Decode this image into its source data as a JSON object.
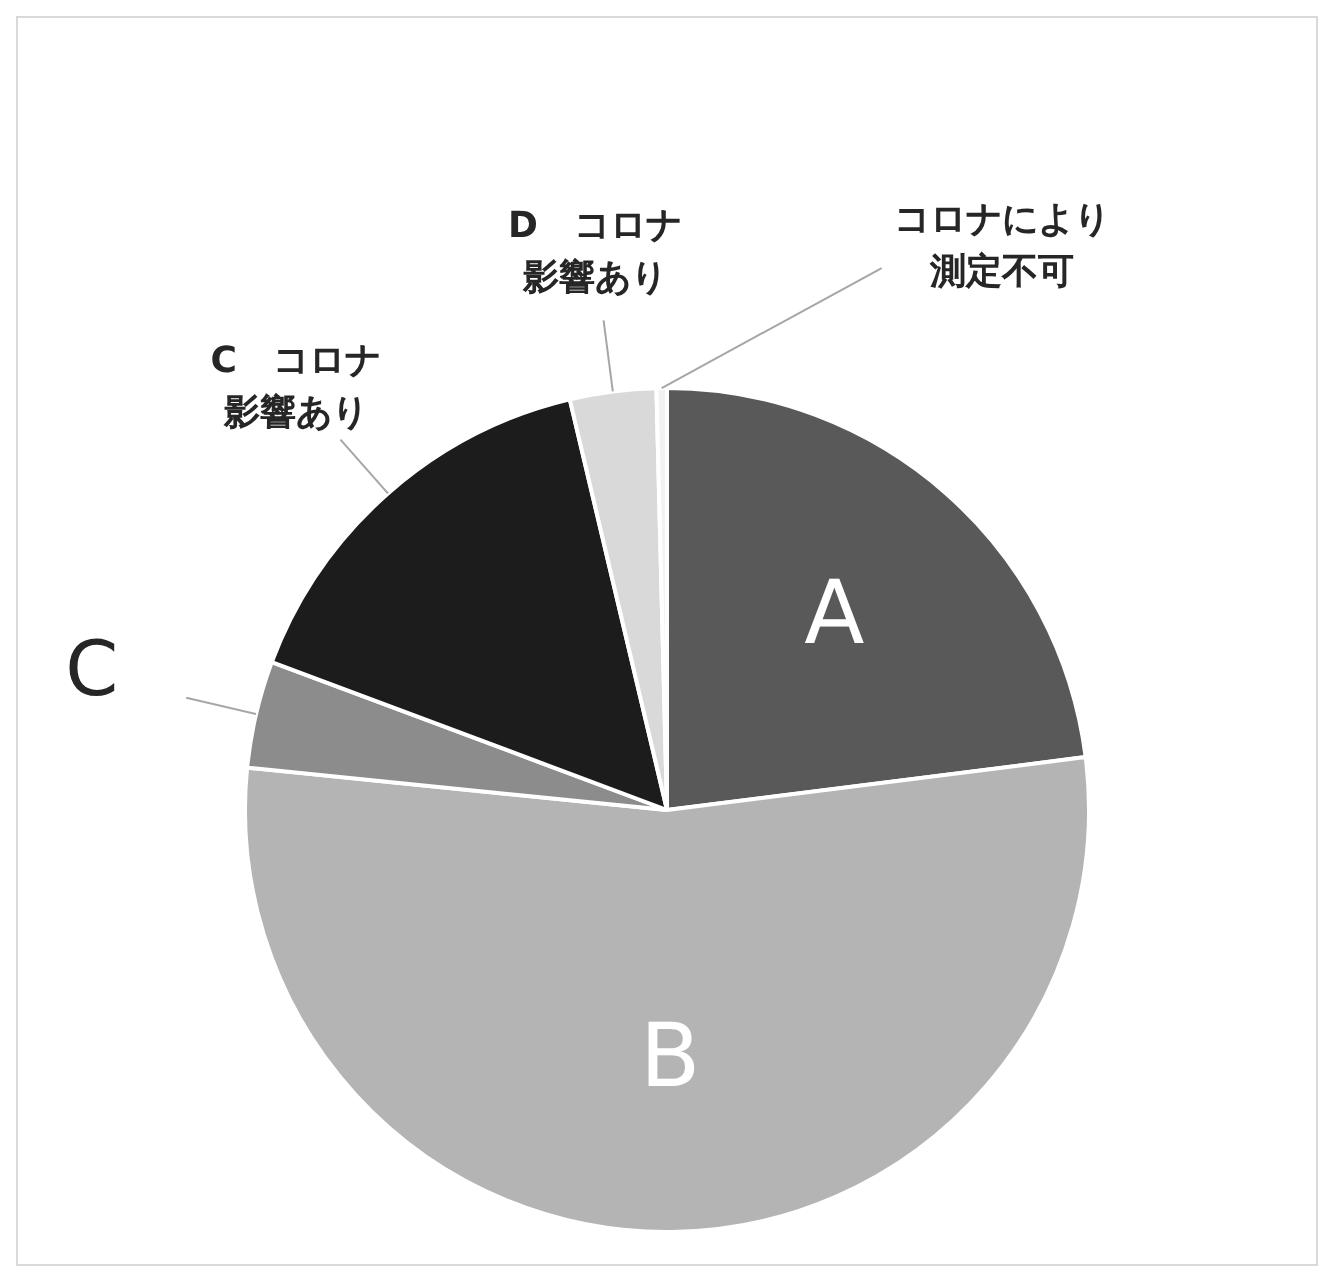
{
  "chart_data": {
    "type": "pie",
    "categories": [
      "A",
      "B",
      "C",
      "C　コロナ影響あり",
      "D　コロナ影響あり",
      "コロナにより測定不可"
    ],
    "values": [
      23,
      53.6,
      4.1,
      15.6,
      3.3,
      0.4
    ],
    "colors": [
      "#595959",
      "#b4b4b4",
      "#8c8c8c",
      "#1c1c1c",
      "#d9d9d9",
      "#f2f2f2"
    ],
    "legend": false
  }
}
